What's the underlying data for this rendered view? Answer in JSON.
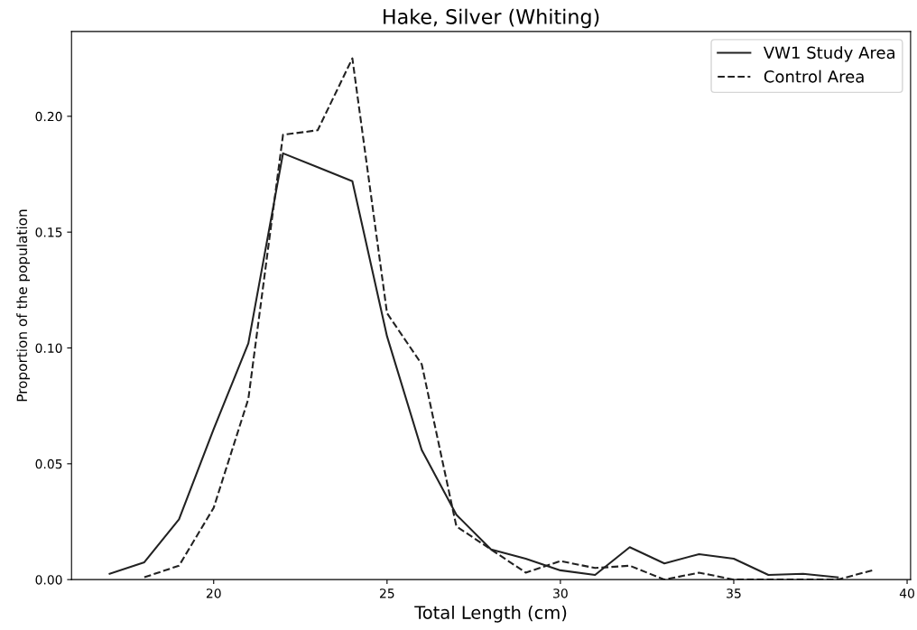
{
  "chart_data": {
    "type": "line",
    "title": "Hake, Silver (Whiting)",
    "xlabel": "Total Length (cm)",
    "ylabel": "Proportion of the population",
    "series": [
      {
        "name": "VW1 Study Area",
        "color": "#222222",
        "line_style": "solid",
        "x": [
          17,
          18,
          19,
          20,
          21,
          22,
          23,
          24,
          25,
          26,
          27,
          28,
          29,
          30,
          31,
          32,
          33,
          34,
          35,
          36,
          37,
          38
        ],
        "values": [
          0.0025,
          0.0075,
          0.026,
          0.065,
          0.102,
          0.184,
          0.178,
          0.172,
          0.105,
          0.056,
          0.028,
          0.013,
          0.009,
          0.004,
          0.002,
          0.014,
          0.007,
          0.011,
          0.009,
          0.002,
          0.0025,
          0.001
        ]
      },
      {
        "name": "Control Area",
        "color": "#222222",
        "line_style": "dashed",
        "x": [
          18,
          19,
          20,
          21,
          22,
          23,
          24,
          25,
          26,
          27,
          28,
          29,
          30,
          31,
          32,
          33,
          34,
          35,
          36,
          37,
          38,
          39
        ],
        "values": [
          0.001,
          0.006,
          0.031,
          0.078,
          0.192,
          0.194,
          0.225,
          0.115,
          0.093,
          0.023,
          0.013,
          0.003,
          0.008,
          0.005,
          0.006,
          0.0,
          0.003,
          0.0,
          0.0,
          0.0,
          0.0,
          0.004
        ]
      }
    ],
    "xlim": [
      15.9,
      40.1
    ],
    "xticks": [
      20,
      25,
      30,
      35,
      40
    ],
    "ylim": [
      0,
      0.2366
    ],
    "yticks": [
      {
        "value": 0,
        "label": "0.00"
      },
      {
        "value": 0.05,
        "label": "0.05"
      },
      {
        "value": 0.1,
        "label": "0.10"
      },
      {
        "value": 0.15,
        "label": "0.15"
      },
      {
        "value": 0.2,
        "label": "0.20"
      }
    ],
    "grid": false,
    "legend": "top right",
    "marker": "none"
  }
}
